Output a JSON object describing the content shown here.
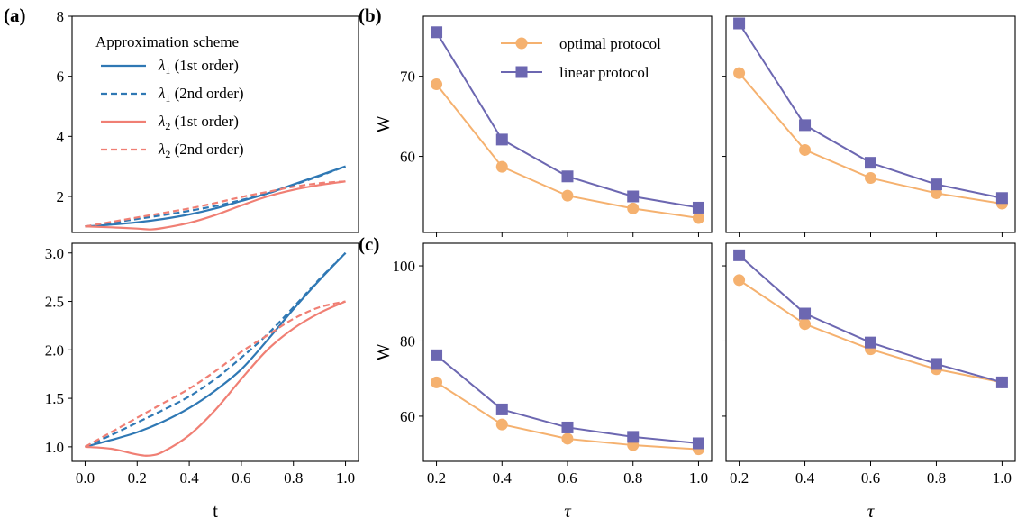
{
  "colors": {
    "lambda1": "#2f78b4",
    "lambda2": "#f07f74",
    "optimal": "#f5b16f",
    "linear": "#6c67b1"
  },
  "chart_data": [
    {
      "id": "a_top",
      "type": "line",
      "panel_label": "(a)",
      "ylim": [
        0.8,
        8
      ],
      "yticks": [
        "2",
        "4",
        "6",
        "8"
      ],
      "xlim": [
        -0.05,
        1.05
      ],
      "legend_title": "Approximation scheme",
      "series": [
        {
          "name": "λ1 (1st order)",
          "symbol": "λ",
          "sub": "1",
          "suffix": " (1st order)",
          "color_key": "lambda1",
          "dashed": false,
          "x": [
            0,
            0.1,
            0.2,
            0.3,
            0.4,
            0.5,
            0.6,
            0.7,
            0.8,
            0.9,
            1.0
          ],
          "y": [
            1.0,
            1.06,
            1.14,
            1.25,
            1.4,
            1.6,
            1.85,
            2.1,
            2.4,
            2.7,
            3.0
          ]
        },
        {
          "name": "λ1 (2nd order)",
          "symbol": "λ",
          "sub": "1",
          "suffix": " (2nd order)",
          "color_key": "lambda1",
          "dashed": true,
          "x": [
            0,
            0.1,
            0.2,
            0.3,
            0.4,
            0.5,
            0.6,
            0.7,
            0.8,
            0.9,
            1.0
          ],
          "y": [
            1.0,
            1.12,
            1.25,
            1.38,
            1.52,
            1.68,
            1.88,
            2.1,
            2.38,
            2.68,
            3.0
          ]
        },
        {
          "name": "λ2 (1st order)",
          "symbol": "λ",
          "sub": "2",
          "suffix": " (1st order)",
          "color_key": "lambda2",
          "dashed": false,
          "x": [
            0,
            0.1,
            0.2,
            0.25,
            0.3,
            0.4,
            0.5,
            0.6,
            0.7,
            0.8,
            0.9,
            1.0
          ],
          "y": [
            1.0,
            0.97,
            0.93,
            0.9,
            0.95,
            1.12,
            1.38,
            1.7,
            2.0,
            2.22,
            2.38,
            2.5
          ]
        },
        {
          "name": "λ2 (2nd order)",
          "symbol": "λ",
          "sub": "2",
          "suffix": " (2nd order)",
          "color_key": "lambda2",
          "dashed": true,
          "x": [
            0,
            0.1,
            0.2,
            0.3,
            0.4,
            0.5,
            0.6,
            0.7,
            0.8,
            0.9,
            1.0
          ],
          "y": [
            1.0,
            1.15,
            1.3,
            1.45,
            1.6,
            1.78,
            1.98,
            2.15,
            2.32,
            2.44,
            2.5
          ]
        }
      ]
    },
    {
      "id": "a_bottom",
      "type": "line",
      "ylim": [
        0.85,
        3.1
      ],
      "yticks": [
        "1.0",
        "1.5",
        "2.0",
        "2.5",
        "3.0"
      ],
      "xlim": [
        -0.05,
        1.05
      ],
      "xticks": [
        "0.0",
        "0.2",
        "0.4",
        "0.6",
        "0.8",
        "1.0"
      ],
      "xlabel": "t",
      "series": [
        {
          "name": "λ1 (1st order)",
          "color_key": "lambda1",
          "dashed": false,
          "x": [
            0,
            0.1,
            0.2,
            0.3,
            0.4,
            0.5,
            0.6,
            0.7,
            0.8,
            0.9,
            1.0
          ],
          "y": [
            1.0,
            1.07,
            1.15,
            1.26,
            1.4,
            1.58,
            1.8,
            2.1,
            2.42,
            2.72,
            3.0
          ]
        },
        {
          "name": "λ1 (2nd order)",
          "color_key": "lambda1",
          "dashed": true,
          "x": [
            0,
            0.1,
            0.2,
            0.3,
            0.4,
            0.5,
            0.6,
            0.7,
            0.8,
            0.9,
            1.0
          ],
          "y": [
            1.0,
            1.12,
            1.25,
            1.38,
            1.52,
            1.7,
            1.92,
            2.16,
            2.44,
            2.73,
            3.0
          ]
        },
        {
          "name": "λ2 (1st order)",
          "color_key": "lambda2",
          "dashed": false,
          "x": [
            0,
            0.1,
            0.2,
            0.25,
            0.3,
            0.4,
            0.5,
            0.6,
            0.7,
            0.8,
            0.9,
            1.0
          ],
          "y": [
            1.0,
            0.98,
            0.92,
            0.91,
            0.95,
            1.12,
            1.38,
            1.7,
            2.0,
            2.22,
            2.38,
            2.5
          ]
        },
        {
          "name": "λ2 (2nd order)",
          "color_key": "lambda2",
          "dashed": true,
          "x": [
            0,
            0.1,
            0.2,
            0.3,
            0.4,
            0.5,
            0.6,
            0.7,
            0.8,
            0.9,
            1.0
          ],
          "y": [
            1.0,
            1.15,
            1.3,
            1.45,
            1.6,
            1.78,
            1.98,
            2.15,
            2.32,
            2.44,
            2.5
          ]
        }
      ]
    },
    {
      "id": "b_left",
      "type": "line",
      "panel_label": "(b)",
      "ylabel": "W",
      "ylim": [
        50.5,
        77.5
      ],
      "yticks": [
        "60",
        "70"
      ],
      "xlim": [
        0.16,
        1.04
      ],
      "x": [
        0.2,
        0.4,
        0.6,
        0.8,
        1.0
      ],
      "legend": [
        "optimal protocol",
        "linear protocol"
      ],
      "series": [
        {
          "name": "optimal protocol",
          "color_key": "optimal",
          "marker": "circle",
          "values": [
            69.0,
            58.7,
            55.1,
            53.5,
            52.3
          ]
        },
        {
          "name": "linear protocol",
          "color_key": "linear",
          "marker": "square",
          "values": [
            75.5,
            62.1,
            57.5,
            55.0,
            53.6
          ]
        }
      ]
    },
    {
      "id": "b_right",
      "type": "line",
      "ylim": [
        50.5,
        77.5
      ],
      "xlim": [
        0.16,
        1.04
      ],
      "x": [
        0.2,
        0.4,
        0.6,
        0.8,
        1.0
      ],
      "series": [
        {
          "name": "optimal protocol",
          "color_key": "optimal",
          "marker": "circle",
          "values": [
            70.4,
            60.8,
            57.3,
            55.4,
            54.1
          ]
        },
        {
          "name": "linear protocol",
          "color_key": "linear",
          "marker": "square",
          "values": [
            76.6,
            63.9,
            59.2,
            56.5,
            54.8
          ]
        }
      ]
    },
    {
      "id": "c_left",
      "type": "line",
      "panel_label": "(c)",
      "ylabel": "W",
      "xlabel": "τ",
      "ylim": [
        48,
        106
      ],
      "yticks": [
        "60",
        "80",
        "100"
      ],
      "xlim": [
        0.16,
        1.04
      ],
      "x": [
        0.2,
        0.4,
        0.6,
        0.8,
        1.0
      ],
      "xticks": [
        "0.2",
        "0.4",
        "0.6",
        "0.8",
        "1.0"
      ],
      "series": [
        {
          "name": "optimal protocol",
          "color_key": "optimal",
          "marker": "circle",
          "values": [
            69.0,
            57.8,
            54.0,
            52.3,
            51.2
          ]
        },
        {
          "name": "linear protocol",
          "color_key": "linear",
          "marker": "square",
          "values": [
            76.2,
            61.8,
            57.0,
            54.5,
            52.8
          ]
        }
      ]
    },
    {
      "id": "c_right",
      "type": "line",
      "xlabel": "τ",
      "ylim": [
        48,
        106
      ],
      "xlim": [
        0.16,
        1.04
      ],
      "x": [
        0.2,
        0.4,
        0.6,
        0.8,
        1.0
      ],
      "xticks": [
        "0.2",
        "0.4",
        "0.6",
        "0.8",
        "1.0"
      ],
      "series": [
        {
          "name": "optimal protocol",
          "color_key": "optimal",
          "marker": "circle",
          "values": [
            96.2,
            84.5,
            77.8,
            72.5,
            69.0
          ]
        },
        {
          "name": "linear protocol",
          "color_key": "linear",
          "marker": "square",
          "values": [
            102.8,
            87.3,
            79.6,
            73.9,
            69.0
          ]
        }
      ]
    }
  ]
}
